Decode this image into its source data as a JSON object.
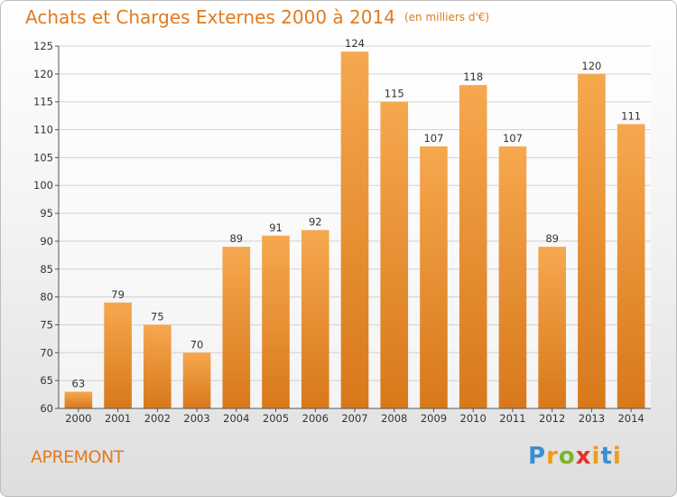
{
  "header": {
    "title": "Achats et Charges Externes 2000 à 2014",
    "unit": "(en milliers d'€)"
  },
  "footer": {
    "place": "APREMONT",
    "logo": "Proxiti"
  },
  "colors": {
    "bar_light": "#f6a84e",
    "bar_dark": "#d8781b",
    "accent": "#e07b1f"
  },
  "chart_data": {
    "type": "bar",
    "title": "Achats et Charges Externes 2000 à 2014",
    "subtitle": "(en milliers d'€)",
    "categories": [
      "2000",
      "2001",
      "2002",
      "2003",
      "2004",
      "2005",
      "2006",
      "2007",
      "2008",
      "2009",
      "2010",
      "2011",
      "2012",
      "2013",
      "2014"
    ],
    "values": [
      63,
      79,
      75,
      70,
      89,
      91,
      92,
      124,
      115,
      107,
      118,
      107,
      89,
      120,
      111
    ],
    "ylim": [
      60,
      125
    ],
    "yticks": [
      60,
      65,
      70,
      75,
      80,
      85,
      90,
      95,
      100,
      105,
      110,
      115,
      120,
      125
    ],
    "grid": true,
    "legend": "none"
  }
}
